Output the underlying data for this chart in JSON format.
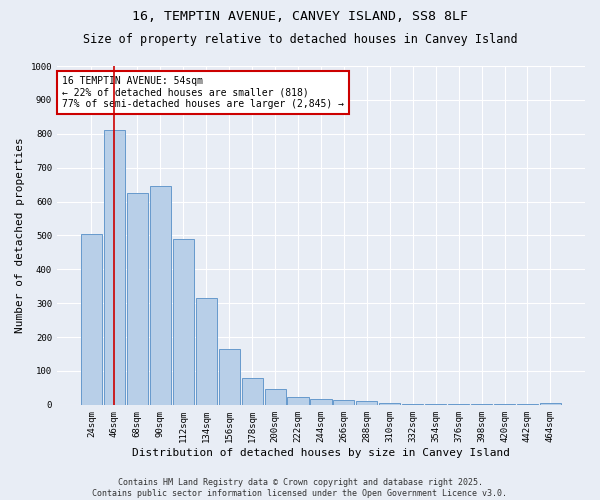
{
  "title1": "16, TEMPTIN AVENUE, CANVEY ISLAND, SS8 8LF",
  "title2": "Size of property relative to detached houses in Canvey Island",
  "xlabel": "Distribution of detached houses by size in Canvey Island",
  "ylabel": "Number of detached properties",
  "categories": [
    "24sqm",
    "46sqm",
    "68sqm",
    "90sqm",
    "112sqm",
    "134sqm",
    "156sqm",
    "178sqm",
    "200sqm",
    "222sqm",
    "244sqm",
    "266sqm",
    "288sqm",
    "310sqm",
    "332sqm",
    "354sqm",
    "376sqm",
    "398sqm",
    "420sqm",
    "442sqm",
    "464sqm"
  ],
  "values": [
    505,
    810,
    625,
    645,
    488,
    315,
    165,
    80,
    47,
    23,
    18,
    15,
    10,
    5,
    3,
    2,
    1,
    1,
    1,
    1,
    5
  ],
  "bar_color": "#b8cfe8",
  "bar_edgecolor": "#6699cc",
  "vline_x": 1,
  "vline_color": "#cc0000",
  "annotation_text": "16 TEMPTIN AVENUE: 54sqm\n← 22% of detached houses are smaller (818)\n77% of semi-detached houses are larger (2,845) →",
  "annotation_box_color": "#ffffff",
  "annotation_box_edgecolor": "#cc0000",
  "ylim": [
    0,
    1000
  ],
  "yticks": [
    0,
    100,
    200,
    300,
    400,
    500,
    600,
    700,
    800,
    900,
    1000
  ],
  "bg_color": "#e8edf5",
  "plot_bg_color": "#e8edf5",
  "footer_text": "Contains HM Land Registry data © Crown copyright and database right 2025.\nContains public sector information licensed under the Open Government Licence v3.0.",
  "title1_fontsize": 9.5,
  "title2_fontsize": 8.5,
  "xlabel_fontsize": 8,
  "ylabel_fontsize": 8,
  "tick_fontsize": 6.5,
  "annotation_fontsize": 7,
  "footer_fontsize": 6
}
